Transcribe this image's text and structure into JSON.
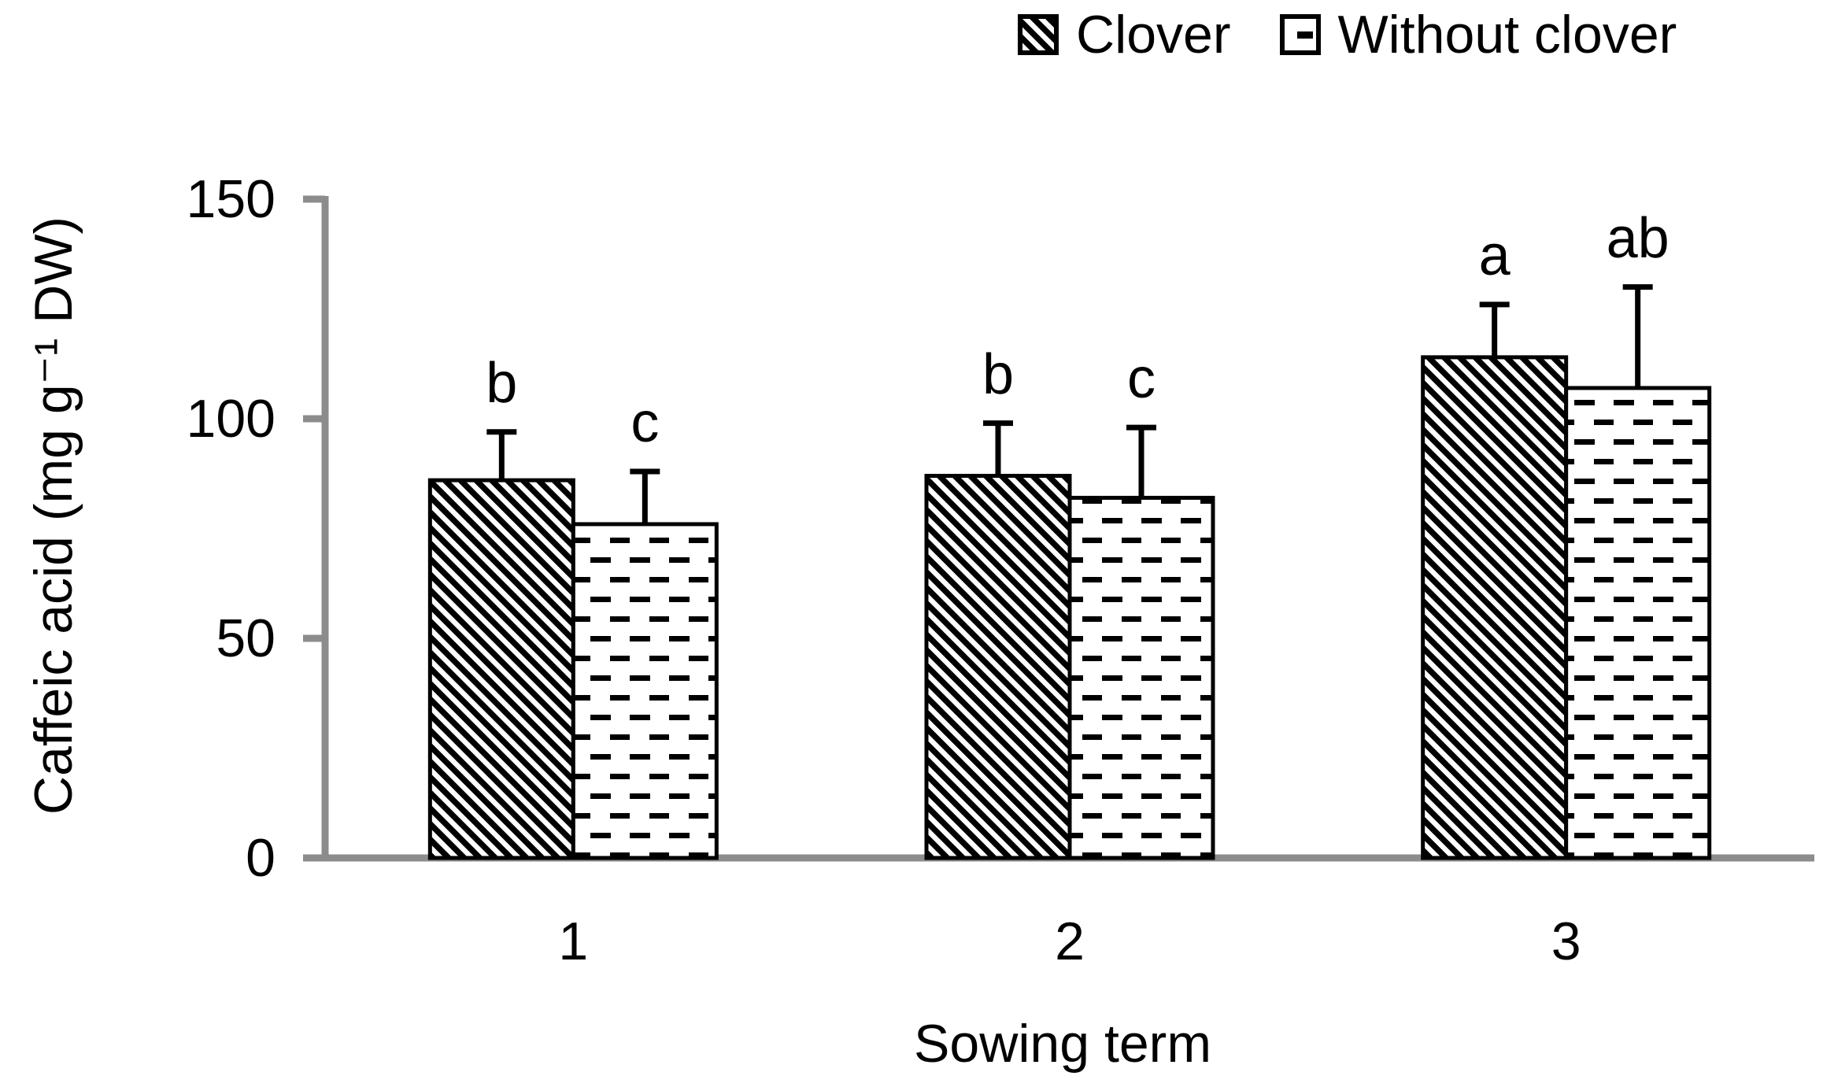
{
  "chart_data": {
    "type": "bar",
    "title": "",
    "categories": [
      "1",
      "2",
      "3"
    ],
    "series": [
      {
        "name": "Clover",
        "pattern": "diagonal-hatch",
        "values": [
          86,
          87,
          114
        ],
        "errors": [
          11,
          12,
          12
        ],
        "letters": [
          "b",
          "b",
          "a"
        ]
      },
      {
        "name": "Without clover",
        "pattern": "horizontal-dash",
        "values": [
          76,
          82,
          107
        ],
        "errors": [
          12,
          16,
          23
        ],
        "letters": [
          "c",
          "c",
          "ab"
        ]
      }
    ],
    "xlabel": "Sowing term",
    "ylabel": "Caffeic acid (mg g⁻¹ DW)",
    "ylim": [
      0,
      150
    ],
    "yticks": [
      0,
      50,
      100,
      150
    ],
    "legend_position": "top-right",
    "grid": false,
    "error_bars": "upper-only"
  },
  "colors": {
    "axis": "#8c8c8c",
    "bar_stroke": "#000000",
    "bar_fill": "#ffffff",
    "text": "#000000"
  }
}
